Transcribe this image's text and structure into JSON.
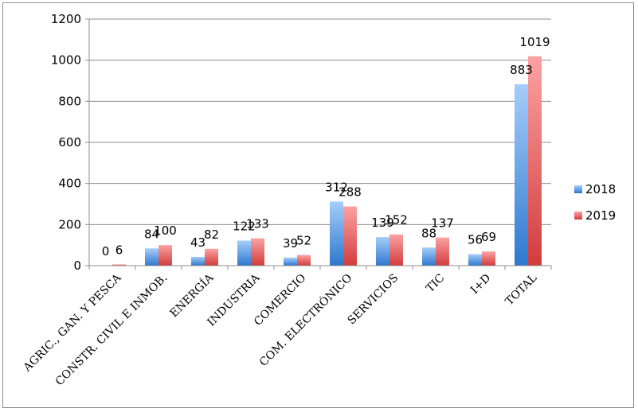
{
  "chart_data": {
    "type": "bar",
    "title": "",
    "xlabel": "",
    "ylabel": "",
    "ylim": [
      0,
      1200
    ],
    "yticks": [
      0,
      200,
      400,
      600,
      800,
      1000,
      1200
    ],
    "grid": true,
    "legend_position": "right",
    "categories": [
      "AGRIC., GAN. Y PESCA",
      "CONSTR. CIVIL E INMOB.",
      "ENERGÍA",
      "INDUSTRIA",
      "COMERCIO",
      "COM. ELECTRÓNICO",
      "SERVICIOS",
      "TIC",
      "I+D",
      "TOTAL"
    ],
    "series": [
      {
        "name": "2018",
        "color": "#4f8fdf",
        "values": [
          0,
          84,
          43,
          122,
          39,
          312,
          139,
          88,
          56,
          883
        ]
      },
      {
        "name": "2019",
        "color": "#e45a5a",
        "values": [
          6,
          100,
          82,
          133,
          52,
          288,
          152,
          137,
          69,
          1019
        ]
      }
    ]
  }
}
